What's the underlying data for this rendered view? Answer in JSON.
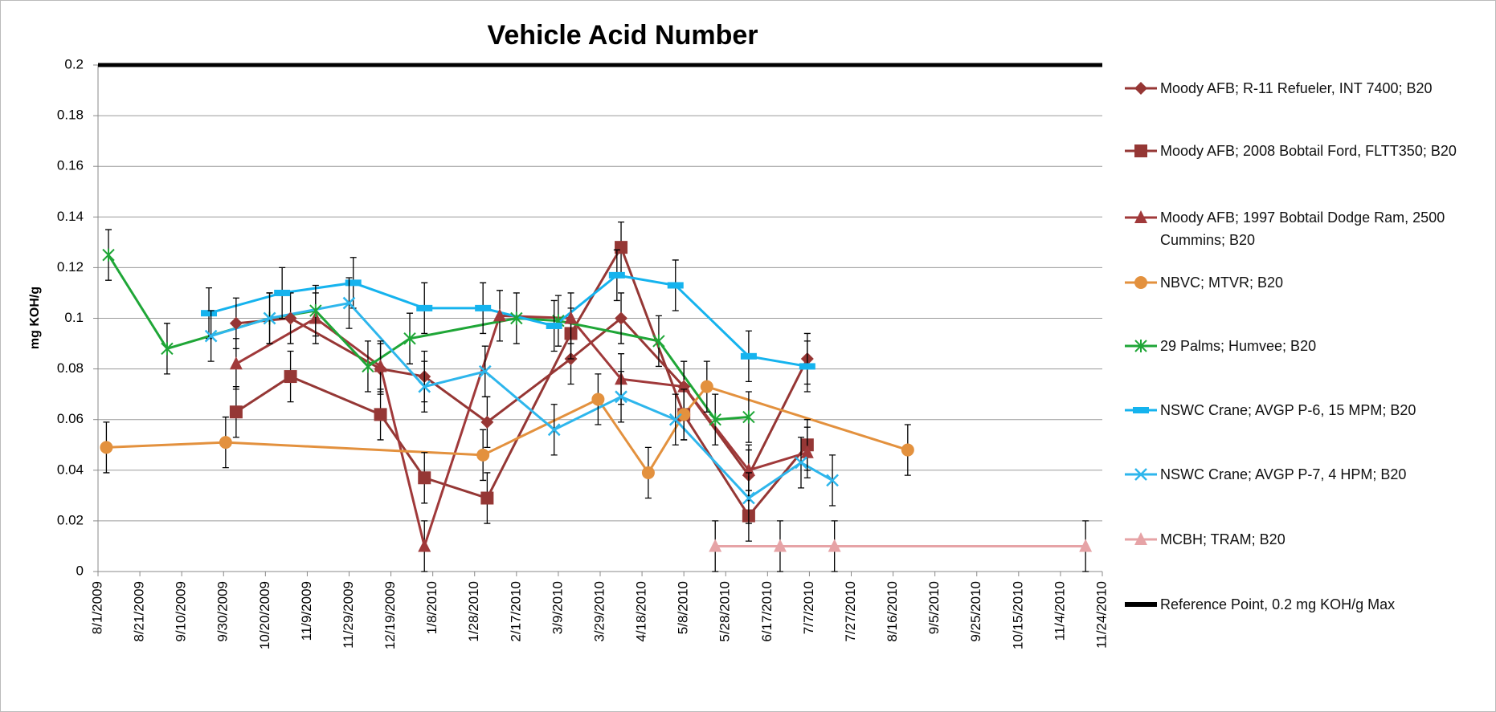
{
  "chart_data": {
    "type": "line",
    "title": "Vehicle Acid Number",
    "y_label": "mg KOH/g",
    "xlim": [
      "8/1/2009",
      "11/24/2010"
    ],
    "xticks": [
      "8/1/2009",
      "8/21/2009",
      "9/10/2009",
      "9/30/2009",
      "10/20/2009",
      "11/9/2009",
      "11/29/2009",
      "12/19/2009",
      "1/8/2010",
      "1/28/2010",
      "2/17/2010",
      "3/9/2010",
      "3/29/2010",
      "4/18/2010",
      "5/8/2010",
      "5/28/2010",
      "6/17/2010",
      "7/7/2010",
      "7/27/2010",
      "8/16/2010",
      "9/5/2010",
      "9/25/2010",
      "10/15/2010",
      "11/4/2010",
      "11/24/2010"
    ],
    "ylim": [
      0,
      0.2
    ],
    "yticks": [
      0,
      0.02,
      0.04,
      0.06,
      0.08,
      0.1,
      0.12,
      0.14,
      0.16,
      0.18,
      0.2
    ],
    "grid": true,
    "legend": "right",
    "series": [
      {
        "name": "Moody AFB;  R-11 Refueler, INT 7400; B20",
        "color": "#963634",
        "marker": "diamond",
        "error": 0.01,
        "x": [
          "10/6/2009",
          "11/1/2009",
          "12/14/2009",
          "1/4/2010",
          "2/3/2010",
          "3/15/2010",
          "4/8/2010",
          "5/8/2010",
          "6/8/2010",
          "7/6/2010"
        ],
        "values": [
          0.098,
          0.1,
          0.08,
          0.077,
          0.059,
          0.084,
          0.1,
          0.073,
          0.038,
          0.084
        ]
      },
      {
        "name": "Moody AFB;  2008 Bobtail Ford, FLTT350; B20",
        "color": "#953735",
        "marker": "square",
        "error": 0.01,
        "x": [
          "10/6/2009",
          "11/1/2009",
          "12/14/2009",
          "1/4/2010",
          "2/3/2010",
          "3/15/2010",
          "4/8/2010",
          "5/8/2010",
          "6/8/2010",
          "7/6/2010"
        ],
        "values": [
          0.063,
          0.077,
          0.062,
          0.037,
          0.029,
          0.094,
          0.128,
          0.062,
          0.022,
          0.05
        ]
      },
      {
        "name": "Moody AFB;  1997 Bobtail Dodge Ram, 2500 Cummins; B20",
        "color": "#a0393a",
        "marker": "triangle",
        "error": 0.01,
        "x": [
          "10/6/2009",
          "11/13/2009",
          "12/14/2009",
          "1/4/2010",
          "2/9/2010",
          "3/15/2010",
          "4/8/2010",
          "5/8/2010",
          "6/8/2010",
          "7/6/2010"
        ],
        "values": [
          0.082,
          0.1,
          0.081,
          0.01,
          0.101,
          0.1,
          0.076,
          0.073,
          0.04,
          0.047
        ]
      },
      {
        "name": "NBVC;  MTVR;  B20",
        "color": "#e3913e",
        "marker": "circle",
        "error": 0.01,
        "x": [
          "8/5/2009",
          "10/1/2009",
          "2/1/2010",
          "3/28/2010",
          "4/21/2010",
          "5/8/2010",
          "5/19/2010",
          "8/23/2010"
        ],
        "values": [
          0.049,
          0.051,
          0.046,
          0.068,
          0.039,
          0.062,
          0.073,
          0.048
        ]
      },
      {
        "name": "29 Palms;  Humvee;  B20",
        "color": "#1fa637",
        "marker": "star",
        "error": 0.01,
        "x": [
          "8/6/2009",
          "9/3/2009",
          "10/22/2009",
          "11/13/2009",
          "12/8/2009",
          "12/28/2009",
          "2/17/2010",
          "3/9/2010",
          "4/26/2010",
          "5/23/2010",
          "6/8/2010"
        ],
        "values": [
          0.125,
          0.088,
          0.1,
          0.103,
          0.081,
          0.092,
          0.1,
          0.099,
          0.091,
          0.06,
          0.061
        ]
      },
      {
        "name": "NSWC Crane;  AVGP  P-6, 15 MPM;  B20",
        "color": "#15b3ee",
        "marker": "dash",
        "error": 0.01,
        "x": [
          "9/23/2009",
          "10/28/2009",
          "12/1/2009",
          "1/4/2010",
          "2/1/2010",
          "3/7/2010",
          "4/6/2010",
          "5/4/2010",
          "6/8/2010",
          "7/6/2010"
        ],
        "values": [
          0.102,
          0.11,
          0.114,
          0.104,
          0.104,
          0.097,
          0.117,
          0.113,
          0.085,
          0.081
        ]
      },
      {
        "name": "NSWC Crane;  AVGP  P-7, 4 HPM;  B20",
        "color": "#2eb6ec",
        "marker": "x",
        "error": 0.01,
        "x": [
          "9/24/2009",
          "10/22/2009",
          "11/29/2009",
          "1/4/2010",
          "2/2/2010",
          "3/7/2010",
          "4/8/2010",
          "5/4/2010",
          "6/8/2010",
          "7/3/2010",
          "7/18/2010"
        ],
        "values": [
          0.093,
          0.1,
          0.106,
          0.073,
          0.079,
          0.056,
          0.069,
          0.06,
          0.029,
          0.043,
          0.036
        ]
      },
      {
        "name": "MCBH;  TRAM;  B20",
        "color": "#e6a3a6",
        "marker": "triangle",
        "error": 0.01,
        "x": [
          "5/23/2010",
          "6/23/2010",
          "7/19/2010",
          "11/16/2010"
        ],
        "values": [
          0.01,
          0.01,
          0.01,
          0.01
        ]
      },
      {
        "name": "Reference Point, 0.2 mg KOH/g Max",
        "color": "#000000",
        "marker": "none",
        "x": [
          "8/1/2009",
          "11/24/2010"
        ],
        "values": [
          0.2,
          0.2
        ]
      }
    ]
  }
}
